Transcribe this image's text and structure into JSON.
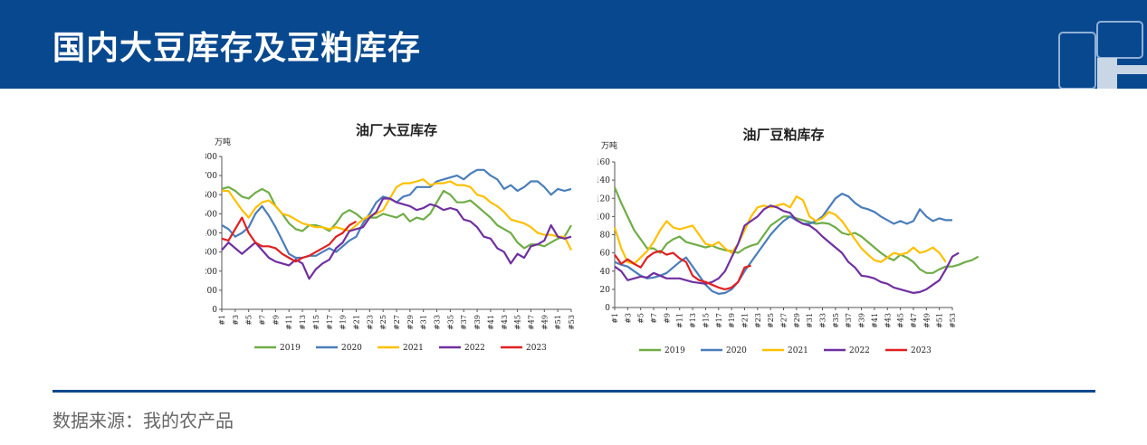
{
  "header": {
    "title": "国内大豆库存及豆粕库存",
    "background": "#08488e"
  },
  "footer": {
    "source": "数据来源：我的农产品"
  },
  "chart_data": [
    {
      "type": "line",
      "title": "油厂大豆库存",
      "ylabel": "万吨",
      "ylim": [
        0,
        800
      ],
      "yticks": [
        0,
        100,
        200,
        300,
        400,
        500,
        600,
        700,
        800
      ],
      "xticks": [
        "#1",
        "#3",
        "#5",
        "#7",
        "#9",
        "#11",
        "#13",
        "#15",
        "#17",
        "#19",
        "#21",
        "#23",
        "#25",
        "#27",
        "#29",
        "#31",
        "#33",
        "#35",
        "#37",
        "#39",
        "#41",
        "#43",
        "#45",
        "#47",
        "#49",
        "#51",
        "#53"
      ],
      "legend_position": "bottom",
      "series": [
        {
          "name": "2019",
          "color": "#70ad47",
          "values": [
            630,
            640,
            620,
            590,
            580,
            610,
            630,
            610,
            540,
            500,
            450,
            420,
            410,
            440,
            440,
            430,
            410,
            450,
            500,
            520,
            500,
            470,
            480,
            480,
            500,
            490,
            480,
            500,
            460,
            480,
            470,
            500,
            560,
            620,
            600,
            560,
            560,
            570,
            540,
            510,
            480,
            440,
            420,
            400,
            350,
            320,
            340,
            340,
            330,
            350,
            370,
            380,
            440
          ]
        },
        {
          "name": "2020",
          "color": "#4a7ebb",
          "values": [
            440,
            420,
            380,
            400,
            430,
            500,
            540,
            490,
            430,
            360,
            290,
            270,
            270,
            280,
            280,
            300,
            320,
            300,
            330,
            360,
            380,
            450,
            500,
            560,
            590,
            580,
            560,
            590,
            600,
            640,
            640,
            640,
            670,
            680,
            690,
            700,
            680,
            710,
            730,
            730,
            700,
            680,
            630,
            650,
            620,
            640,
            670,
            670,
            640,
            600,
            630,
            620,
            630
          ]
        },
        {
          "name": "2021",
          "color": "#ffc000",
          "values": [
            620,
            620,
            570,
            520,
            480,
            530,
            560,
            570,
            540,
            500,
            490,
            470,
            450,
            440,
            430,
            430,
            420,
            430,
            420,
            410,
            440,
            470,
            490,
            500,
            520,
            580,
            640,
            660,
            660,
            670,
            680,
            650,
            660,
            660,
            670,
            650,
            650,
            640,
            600,
            590,
            560,
            540,
            510,
            470,
            460,
            450,
            430,
            400,
            390,
            390,
            380,
            380,
            310
          ]
        },
        {
          "name": "2022",
          "color": "#7030a0",
          "values": [
            310,
            350,
            320,
            290,
            320,
            350,
            310,
            270,
            250,
            240,
            230,
            260,
            240,
            160,
            210,
            240,
            260,
            320,
            350,
            410,
            420,
            430,
            480,
            510,
            580,
            580,
            560,
            550,
            540,
            520,
            530,
            550,
            540,
            520,
            530,
            520,
            470,
            460,
            430,
            380,
            370,
            320,
            300,
            240,
            290,
            270,
            330,
            340,
            360,
            440,
            380,
            370,
            380
          ]
        },
        {
          "name": "2023",
          "color": "#e02020",
          "values": [
            370,
            360,
            420,
            480,
            400,
            350,
            330,
            330,
            320,
            290,
            270,
            250,
            270,
            280,
            300,
            320,
            340,
            380,
            400,
            440,
            460
          ]
        }
      ]
    },
    {
      "type": "line",
      "title": "油厂豆粕库存",
      "ylabel": "万吨",
      "ylim": [
        0,
        160
      ],
      "yticks": [
        0,
        20,
        40,
        60,
        80,
        100,
        120,
        140,
        160
      ],
      "xticks": [
        "#1",
        "#3",
        "#5",
        "#7",
        "#9",
        "#11",
        "#13",
        "#15",
        "#17",
        "#19",
        "#21",
        "#23",
        "#25",
        "#27",
        "#29",
        "#31",
        "#33",
        "#35",
        "#37",
        "#39",
        "#41",
        "#43",
        "#45",
        "#47",
        "#49",
        "#51",
        "#53"
      ],
      "legend_position": "bottom",
      "series": [
        {
          "name": "2019",
          "color": "#70ad47",
          "values": [
            132,
            115,
            100,
            85,
            75,
            65,
            65,
            60,
            70,
            75,
            78,
            72,
            70,
            68,
            66,
            68,
            65,
            63,
            62,
            60,
            65,
            68,
            70,
            80,
            90,
            95,
            100,
            100,
            98,
            96,
            94,
            92,
            93,
            92,
            88,
            82,
            80,
            82,
            78,
            72,
            66,
            60,
            55,
            52,
            58,
            55,
            50,
            42,
            38,
            38,
            42,
            45,
            45,
            47,
            50,
            52,
            56
          ]
        },
        {
          "name": "2020",
          "color": "#4a7ebb",
          "values": [
            50,
            47,
            45,
            40,
            35,
            32,
            33,
            35,
            38,
            44,
            50,
            55,
            45,
            35,
            25,
            18,
            15,
            16,
            20,
            28,
            40,
            50,
            60,
            70,
            80,
            88,
            95,
            100,
            96,
            92,
            92,
            95,
            100,
            110,
            120,
            125,
            122,
            115,
            110,
            108,
            105,
            100,
            96,
            92,
            95,
            92,
            95,
            108,
            100,
            95,
            98,
            96,
            96
          ]
        },
        {
          "name": "2021",
          "color": "#ffc000",
          "values": [
            88,
            65,
            50,
            48,
            55,
            62,
            72,
            85,
            95,
            88,
            86,
            88,
            90,
            80,
            70,
            68,
            72,
            65,
            60,
            70,
            85,
            100,
            110,
            112,
            110,
            112,
            114,
            110,
            122,
            118,
            100,
            95,
            98,
            105,
            102,
            95,
            85,
            75,
            65,
            58,
            52,
            50,
            55,
            60,
            58,
            60,
            66,
            60,
            62,
            66,
            60,
            50
          ]
        },
        {
          "name": "2022",
          "color": "#7030a0",
          "values": [
            45,
            40,
            30,
            32,
            34,
            33,
            38,
            35,
            32,
            32,
            32,
            30,
            28,
            27,
            26,
            28,
            32,
            40,
            55,
            70,
            90,
            95,
            100,
            108,
            112,
            110,
            106,
            104,
            96,
            92,
            90,
            85,
            78,
            72,
            66,
            60,
            50,
            44,
            35,
            34,
            32,
            28,
            26,
            22,
            20,
            18,
            16,
            17,
            20,
            25,
            30,
            42,
            56,
            60
          ]
        },
        {
          "name": "2023",
          "color": "#e02020",
          "values": [
            58,
            48,
            53,
            48,
            44,
            55,
            60,
            62,
            58,
            60,
            54,
            50,
            35,
            30,
            28,
            25,
            22,
            20,
            22,
            28,
            44,
            46
          ]
        }
      ]
    }
  ]
}
